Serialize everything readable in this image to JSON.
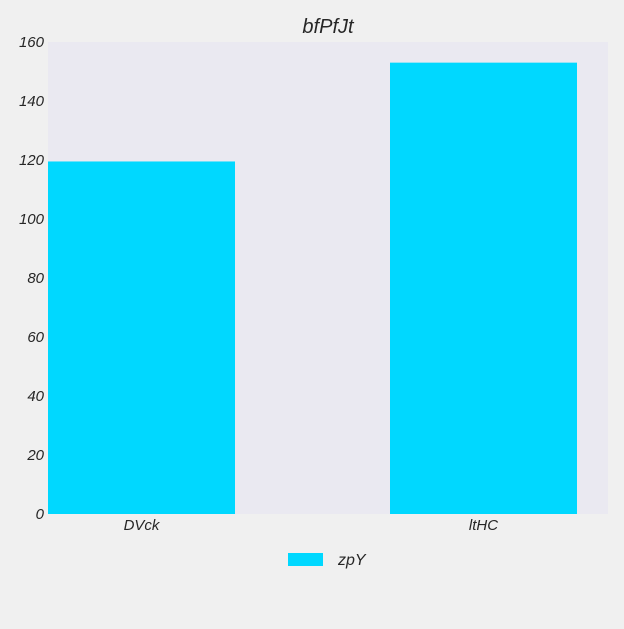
{
  "chart_data": {
    "type": "bar",
    "title": "bfPfJt",
    "categories": [
      "DVck",
      "ltHC"
    ],
    "series": [
      {
        "name": "zpY",
        "values": [
          119.5,
          153
        ]
      }
    ],
    "ylim": [
      0,
      160
    ],
    "yticks": [
      0,
      20,
      40,
      60,
      80,
      100,
      120,
      140,
      160
    ],
    "grid": false,
    "legend_position": "bottom-center",
    "colors": {
      "background": "#f0f0f0",
      "plot_background": "#eae9f1",
      "bar": "#00d8ff",
      "text": "#262626"
    }
  }
}
